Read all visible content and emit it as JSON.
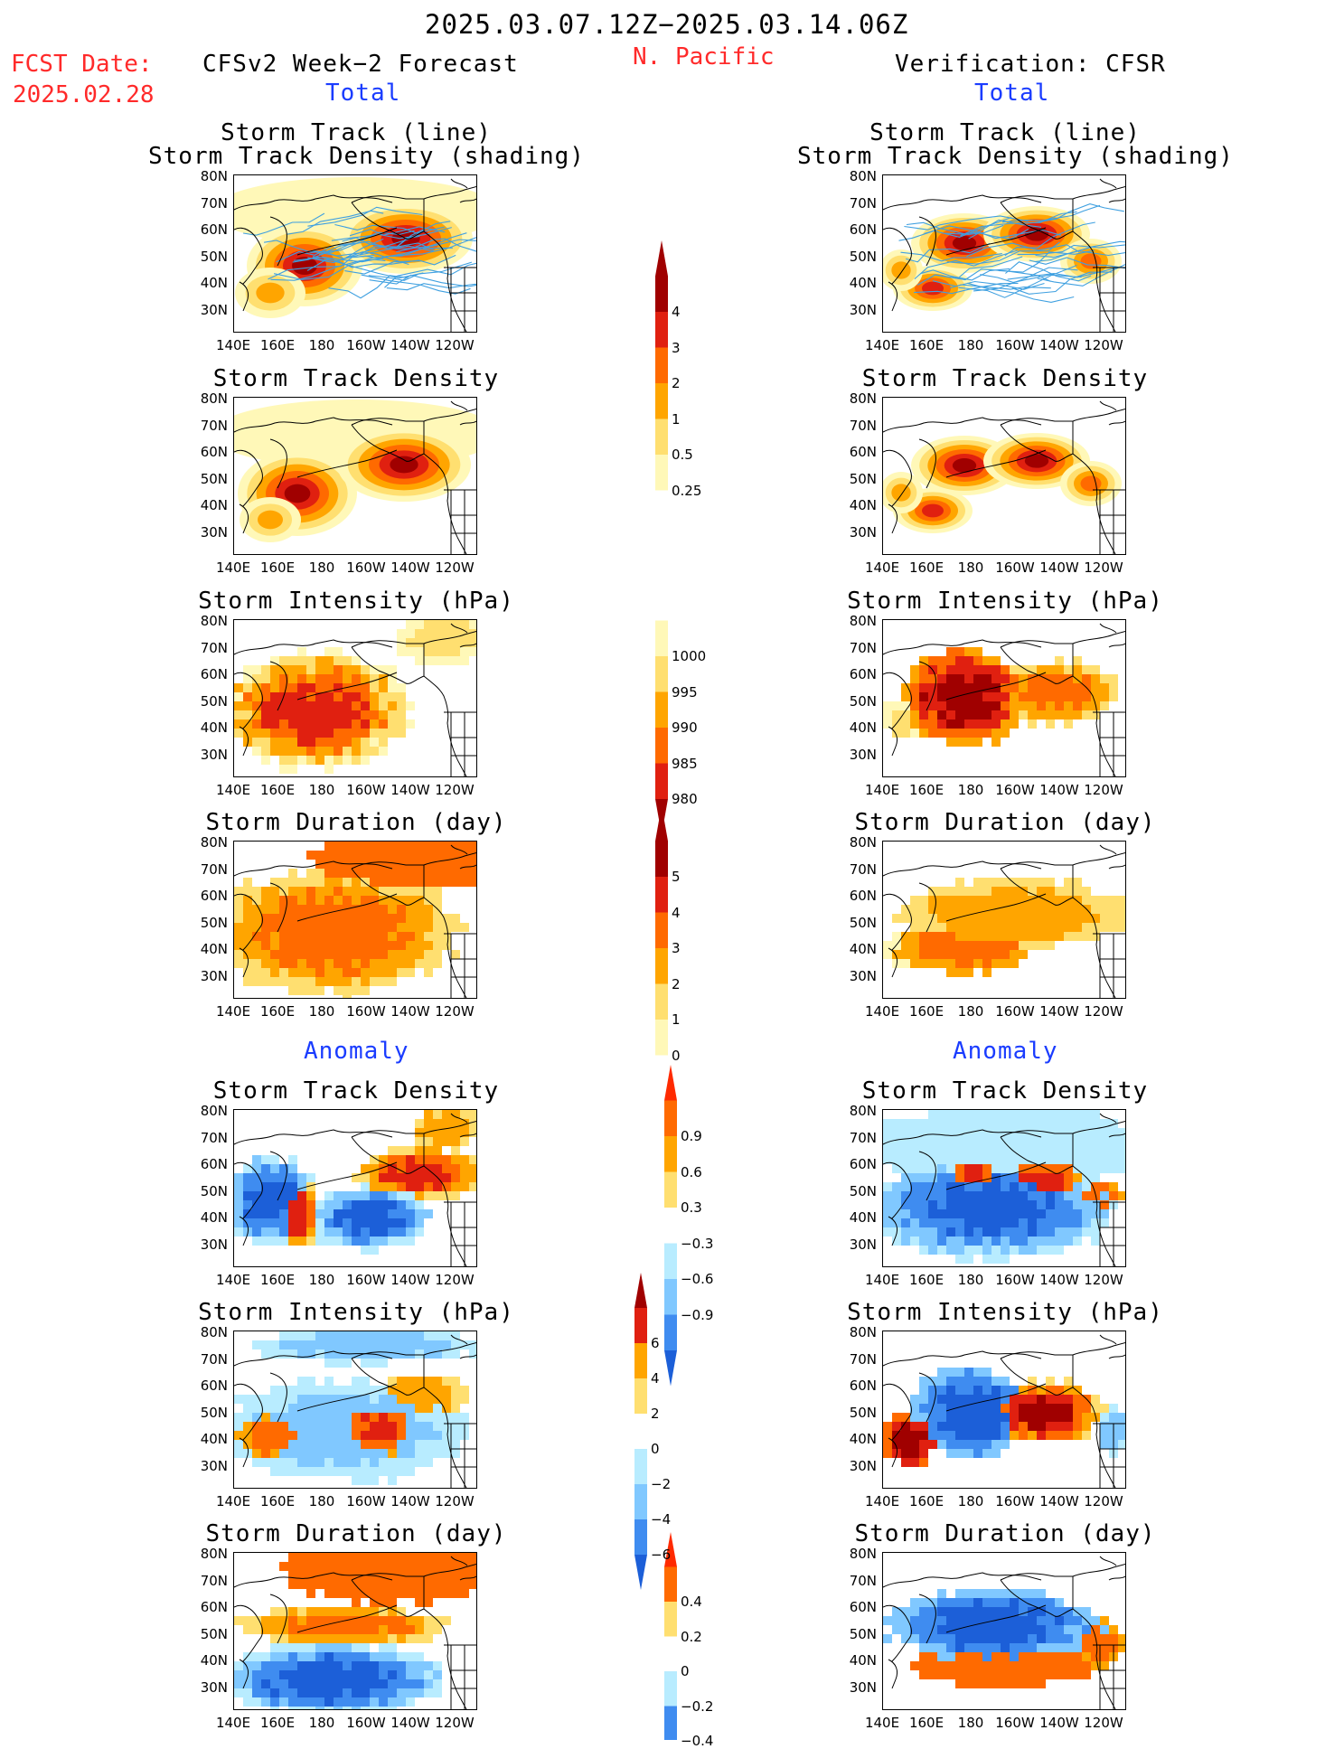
{
  "header": {
    "date_range": "2025.03.07.12Z−2025.03.14.06Z",
    "region": "N. Pacific",
    "fcst_label": "FCST Date:",
    "fcst_date": "2025.02.28",
    "left_title": "CFSv2 Week−2 Forecast",
    "right_title": "Verification: CFSR",
    "total_label": "Total",
    "anomaly_label": "Anomaly"
  },
  "axes": {
    "lat_labels": [
      "80N",
      "70N",
      "60N",
      "50N",
      "40N",
      "30N"
    ],
    "lon_labels": [
      "140E",
      "160E",
      "180",
      "160W",
      "140W",
      "120W"
    ]
  },
  "panels": {
    "track_title_1": "Storm Track (line)",
    "track_title_2": "Storm Track Density (shading)",
    "density": "Storm Track Density",
    "intensity": "Storm Intensity (hPa)",
    "duration": "Storm Duration (day)"
  },
  "colorbars": {
    "density_total": [
      "4",
      "3",
      "2",
      "1",
      "0.5",
      "0.25"
    ],
    "intensity_total": [
      "1000",
      "995",
      "990",
      "985",
      "980"
    ],
    "duration_total": [
      "5",
      "4",
      "3",
      "2",
      "1",
      "0"
    ],
    "density_anom": [
      "0.9",
      "0.6",
      "0.3",
      "−0.3",
      "−0.6",
      "−0.9"
    ],
    "intensity_anom": [
      "6",
      "4",
      "2",
      "0",
      "−2",
      "−4",
      "−6"
    ],
    "duration_anom": [
      "0.4",
      "0.2",
      "0",
      "−0.2",
      "−0.4"
    ]
  },
  "colors": {
    "warm": [
      "#fff8b8",
      "#ffdf70",
      "#ffa500",
      "#ff6a00",
      "#e02010",
      "#a00000"
    ],
    "cool": [
      "#b8ecff",
      "#80c8ff",
      "#3f8cf0",
      "#1c5fd8"
    ],
    "track_line": "#3fa0e0"
  }
}
